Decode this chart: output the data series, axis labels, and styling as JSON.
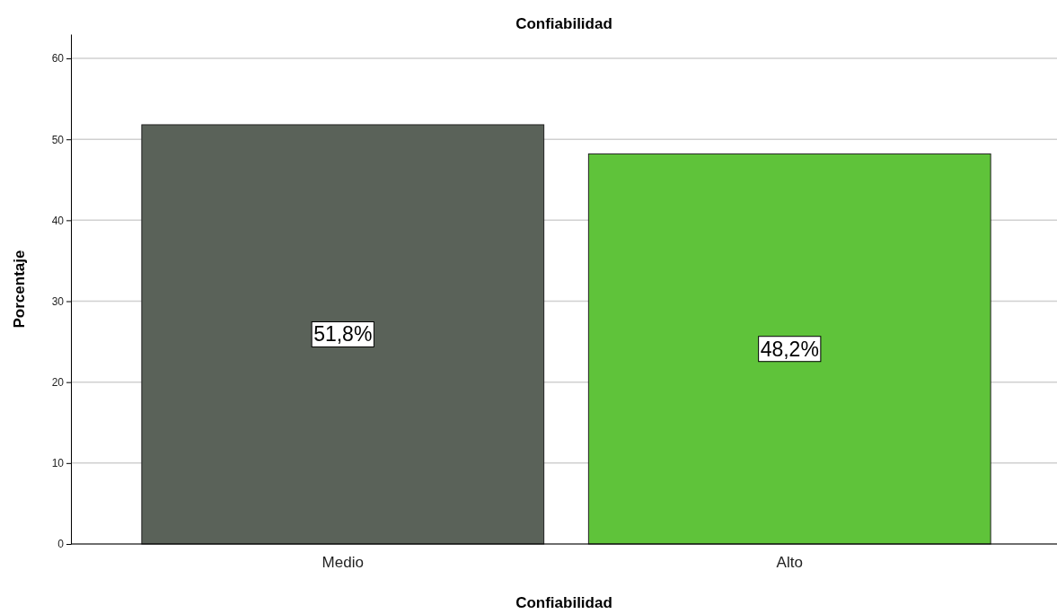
{
  "chart_data": {
    "type": "bar",
    "title": "Confiabilidad",
    "xlabel": "Confiabilidad",
    "ylabel": "Porcentaje",
    "categories": [
      "Medio",
      "Alto"
    ],
    "values": [
      51.8,
      48.2
    ],
    "colors": [
      "#5a6259",
      "#5fc33a"
    ],
    "value_labels": [
      "51,8%",
      "48,2%"
    ],
    "ylim": [
      0,
      63
    ],
    "yticks": [
      0,
      10,
      20,
      30,
      40,
      50,
      60
    ],
    "grid": "y"
  }
}
